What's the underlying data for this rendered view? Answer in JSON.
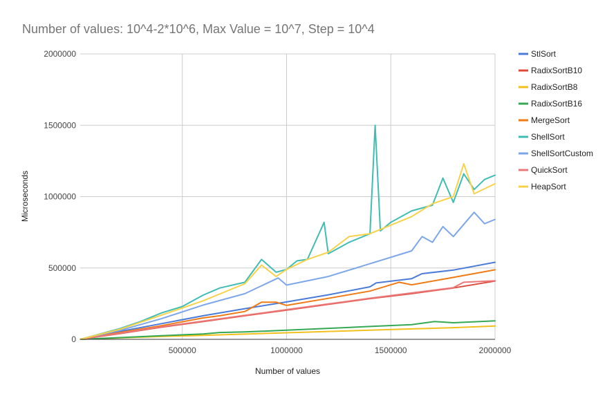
{
  "chart_data": {
    "type": "line",
    "title": "Number of values: 10^4-2*10^6, Max Value = 10^7, Step = 10^4",
    "xlabel": "Number of values",
    "ylabel": "Microseconds",
    "xlim": [
      10000,
      2000000
    ],
    "ylim": [
      0,
      2000000
    ],
    "x_ticks": [
      "500000",
      "1000000",
      "1500000",
      "2000000"
    ],
    "y_ticks": [
      "0",
      "500000",
      "1000000",
      "1500000",
      "2000000"
    ],
    "grid": true,
    "legend_position": "right",
    "series": [
      {
        "name": "StlSort",
        "color": "#4a7bd8",
        "points": [
          [
            10000,
            0
          ],
          [
            200000,
            55000
          ],
          [
            400000,
            110000
          ],
          [
            600000,
            165000
          ],
          [
            800000,
            215000
          ],
          [
            1000000,
            262000
          ],
          [
            1200000,
            312000
          ],
          [
            1400000,
            368000
          ],
          [
            1430000,
            395000
          ],
          [
            1600000,
            425000
          ],
          [
            1650000,
            460000
          ],
          [
            1800000,
            485000
          ],
          [
            2000000,
            540000
          ]
        ]
      },
      {
        "name": "RadixSortB10",
        "color": "#e04a3a",
        "points": [
          [
            10000,
            0
          ],
          [
            200000,
            40000
          ],
          [
            400000,
            85000
          ],
          [
            600000,
            125000
          ],
          [
            800000,
            165000
          ],
          [
            1000000,
            205000
          ],
          [
            1200000,
            245000
          ],
          [
            1400000,
            285000
          ],
          [
            1600000,
            320000
          ],
          [
            1800000,
            360000
          ],
          [
            2000000,
            408000
          ]
        ]
      },
      {
        "name": "RadixSortB8",
        "color": "#f2bf1d",
        "points": [
          [
            10000,
            0
          ],
          [
            200000,
            10000
          ],
          [
            400000,
            20000
          ],
          [
            600000,
            28000
          ],
          [
            800000,
            37000
          ],
          [
            1000000,
            46000
          ],
          [
            1200000,
            55000
          ],
          [
            1400000,
            64000
          ],
          [
            1600000,
            73000
          ],
          [
            1800000,
            82000
          ],
          [
            2000000,
            93000
          ]
        ]
      },
      {
        "name": "RadixSortB16",
        "color": "#34a853",
        "points": [
          [
            10000,
            0
          ],
          [
            200000,
            12000
          ],
          [
            400000,
            25000
          ],
          [
            600000,
            38000
          ],
          [
            680000,
            48000
          ],
          [
            800000,
            52000
          ],
          [
            1000000,
            64000
          ],
          [
            1200000,
            77000
          ],
          [
            1400000,
            90000
          ],
          [
            1600000,
            103000
          ],
          [
            1710000,
            125000
          ],
          [
            1800000,
            116000
          ],
          [
            2000000,
            130000
          ]
        ]
      },
      {
        "name": "MergeSort",
        "color": "#f07a14",
        "points": [
          [
            10000,
            0
          ],
          [
            200000,
            48000
          ],
          [
            400000,
            96000
          ],
          [
            600000,
            150000
          ],
          [
            680000,
            165000
          ],
          [
            800000,
            195000
          ],
          [
            880000,
            260000
          ],
          [
            950000,
            260000
          ],
          [
            1000000,
            238000
          ],
          [
            1200000,
            287000
          ],
          [
            1400000,
            338000
          ],
          [
            1540000,
            400000
          ],
          [
            1600000,
            382000
          ],
          [
            1800000,
            434000
          ],
          [
            2000000,
            487000
          ]
        ]
      },
      {
        "name": "ShellSort",
        "color": "#3fbcb4",
        "points": [
          [
            10000,
            0
          ],
          [
            200000,
            75000
          ],
          [
            300000,
            125000
          ],
          [
            400000,
            185000
          ],
          [
            500000,
            230000
          ],
          [
            600000,
            310000
          ],
          [
            680000,
            360000
          ],
          [
            800000,
            400000
          ],
          [
            880000,
            560000
          ],
          [
            950000,
            470000
          ],
          [
            1000000,
            490000
          ],
          [
            1050000,
            550000
          ],
          [
            1100000,
            560000
          ],
          [
            1180000,
            820000
          ],
          [
            1200000,
            600000
          ],
          [
            1300000,
            680000
          ],
          [
            1400000,
            740000
          ],
          [
            1425000,
            1500000
          ],
          [
            1450000,
            760000
          ],
          [
            1500000,
            820000
          ],
          [
            1600000,
            900000
          ],
          [
            1700000,
            940000
          ],
          [
            1750000,
            1130000
          ],
          [
            1800000,
            960000
          ],
          [
            1850000,
            1160000
          ],
          [
            1900000,
            1050000
          ],
          [
            1950000,
            1120000
          ],
          [
            2000000,
            1150000
          ]
        ]
      },
      {
        "name": "ShellSortCustom",
        "color": "#7ca6ea",
        "points": [
          [
            10000,
            0
          ],
          [
            200000,
            62000
          ],
          [
            400000,
            145000
          ],
          [
            600000,
            240000
          ],
          [
            800000,
            320000
          ],
          [
            960000,
            430000
          ],
          [
            1000000,
            380000
          ],
          [
            1200000,
            440000
          ],
          [
            1400000,
            530000
          ],
          [
            1600000,
            620000
          ],
          [
            1650000,
            720000
          ],
          [
            1700000,
            680000
          ],
          [
            1750000,
            790000
          ],
          [
            1800000,
            720000
          ],
          [
            1900000,
            890000
          ],
          [
            1950000,
            810000
          ],
          [
            2000000,
            840000
          ]
        ]
      },
      {
        "name": "QuickSort",
        "color": "#eb7878",
        "points": [
          [
            10000,
            0
          ],
          [
            200000,
            42000
          ],
          [
            400000,
            88000
          ],
          [
            600000,
            128000
          ],
          [
            800000,
            168000
          ],
          [
            1000000,
            208000
          ],
          [
            1200000,
            248000
          ],
          [
            1400000,
            288000
          ],
          [
            1600000,
            325000
          ],
          [
            1800000,
            362000
          ],
          [
            1850000,
            400000
          ],
          [
            2000000,
            410000
          ]
        ]
      },
      {
        "name": "HeapSort",
        "color": "#f7d249",
        "points": [
          [
            10000,
            0
          ],
          [
            200000,
            70000
          ],
          [
            400000,
            170000
          ],
          [
            600000,
            270000
          ],
          [
            800000,
            390000
          ],
          [
            880000,
            520000
          ],
          [
            950000,
            440000
          ],
          [
            1000000,
            490000
          ],
          [
            1100000,
            560000
          ],
          [
            1200000,
            610000
          ],
          [
            1300000,
            720000
          ],
          [
            1400000,
            740000
          ],
          [
            1500000,
            800000
          ],
          [
            1600000,
            860000
          ],
          [
            1700000,
            950000
          ],
          [
            1800000,
            1000000
          ],
          [
            1850000,
            1230000
          ],
          [
            1900000,
            1020000
          ],
          [
            2000000,
            1090000
          ]
        ]
      }
    ]
  }
}
